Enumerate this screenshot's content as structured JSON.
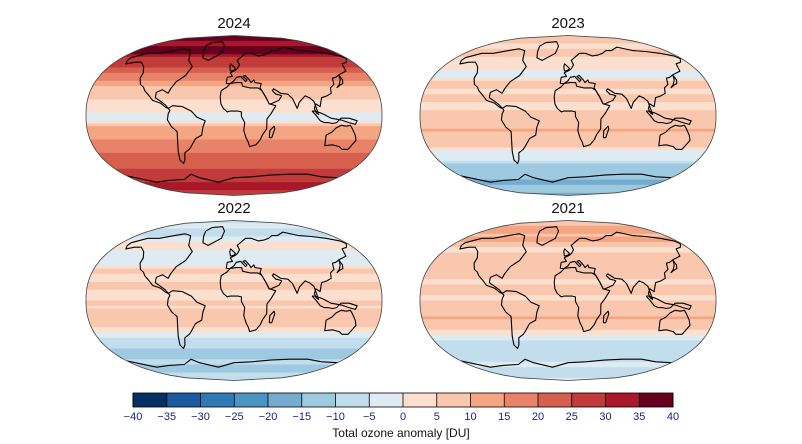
{
  "panels": [
    {
      "year": "2024",
      "tint": [
        [
          -70,
          30
        ],
        [
          -60,
          25
        ],
        [
          -45,
          20
        ],
        [
          -30,
          15
        ],
        [
          -15,
          10
        ],
        [
          0,
          -3
        ],
        [
          10,
          5
        ],
        [
          20,
          5
        ],
        [
          35,
          10
        ],
        [
          50,
          22
        ],
        [
          60,
          28
        ],
        [
          70,
          34
        ],
        [
          80,
          36
        ]
      ]
    },
    {
      "year": "2023",
      "tint": [
        [
          -70,
          -15
        ],
        [
          -60,
          -12
        ],
        [
          -45,
          -3
        ],
        [
          -30,
          7
        ],
        [
          -15,
          9
        ],
        [
          0,
          6
        ],
        [
          10,
          3
        ],
        [
          20,
          5
        ],
        [
          35,
          7
        ],
        [
          50,
          -3
        ],
        [
          60,
          4
        ],
        [
          70,
          6
        ],
        [
          80,
          5
        ]
      ]
    },
    {
      "year": "2022",
      "tint": [
        [
          -70,
          -10
        ],
        [
          -60,
          -12
        ],
        [
          -45,
          -8
        ],
        [
          -30,
          6
        ],
        [
          -15,
          9
        ],
        [
          0,
          3
        ],
        [
          10,
          5
        ],
        [
          20,
          5
        ],
        [
          35,
          4
        ],
        [
          50,
          -4
        ],
        [
          60,
          3
        ],
        [
          70,
          -3
        ],
        [
          80,
          -6
        ]
      ]
    },
    {
      "year": "2021",
      "tint": [
        [
          -70,
          -6
        ],
        [
          -60,
          -9
        ],
        [
          -45,
          -5
        ],
        [
          -30,
          8
        ],
        [
          -15,
          9
        ],
        [
          0,
          4
        ],
        [
          10,
          7
        ],
        [
          20,
          6
        ],
        [
          35,
          8
        ],
        [
          50,
          7
        ],
        [
          60,
          4
        ],
        [
          70,
          12
        ],
        [
          80,
          10
        ]
      ]
    }
  ],
  "colorbar": {
    "ticks": [
      "−40",
      "−35",
      "−30",
      "−25",
      "−20",
      "−15",
      "−10",
      "−5",
      "0",
      "5",
      "10",
      "15",
      "20",
      "25",
      "30",
      "35",
      "40"
    ],
    "colors": [
      "#053061",
      "#1b5a9e",
      "#2f79b5",
      "#4b94c4",
      "#74add1",
      "#9ecae1",
      "#c2ddec",
      "#deebf3",
      "#fbe0d0",
      "#f9c7ad",
      "#f4a582",
      "#e8836a",
      "#d6604d",
      "#c23b3b",
      "#a8172a",
      "#67001f"
    ],
    "label": "Total ozone anomaly [DU]"
  }
}
